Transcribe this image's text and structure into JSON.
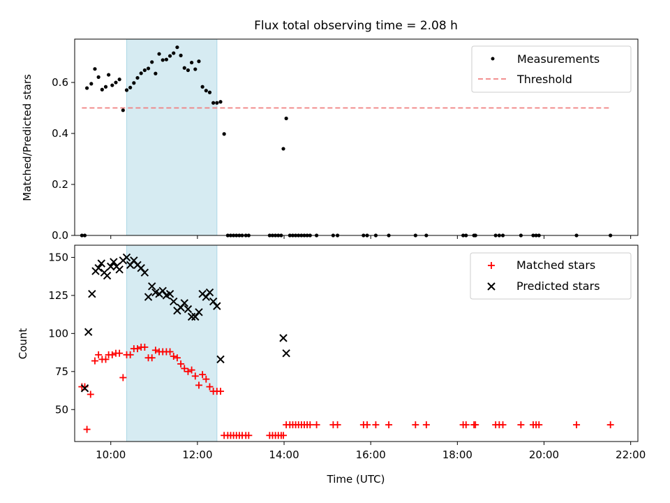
{
  "title": "Flux total observing time = 2.08 h",
  "colors": {
    "measurement": "#000000",
    "threshold": "#f08080",
    "matched": "#ff0000",
    "predicted": "#000000",
    "band": "#add8e6"
  },
  "chart_data": [
    {
      "type": "scatter",
      "ylabel": "Matched/Predicted stars",
      "ylim": [
        0,
        0.77
      ],
      "yticks": [
        0.0,
        0.2,
        0.4,
        0.6
      ],
      "yticklabels": [
        "0.0",
        "0.2",
        "0.4",
        "0.6"
      ],
      "xlim": [
        "09:10",
        "22:10"
      ],
      "shaded_interval": [
        "10:22",
        "12:27"
      ],
      "legend": [
        "Measurements",
        "Threshold"
      ],
      "legend_position": "upper right",
      "threshold": {
        "name": "Threshold",
        "value": 0.5,
        "x": [
          "09:20",
          "21:32"
        ]
      },
      "series": [
        {
          "name": "Measurements",
          "points": [
            [
              "09:20",
              0.0
            ],
            [
              "09:24",
              0.0
            ],
            [
              "09:27",
              0.578
            ],
            [
              "09:33",
              0.595
            ],
            [
              "09:38",
              0.653
            ],
            [
              "09:43",
              0.621
            ],
            [
              "09:48",
              0.572
            ],
            [
              "09:53",
              0.583
            ],
            [
              "09:57",
              0.63
            ],
            [
              "10:02",
              0.589
            ],
            [
              "10:07",
              0.6
            ],
            [
              "10:12",
              0.612
            ],
            [
              "10:17",
              0.491
            ],
            [
              "10:22",
              0.57
            ],
            [
              "10:27",
              0.58
            ],
            [
              "10:32",
              0.598
            ],
            [
              "10:37",
              0.618
            ],
            [
              "10:42",
              0.636
            ],
            [
              "10:47",
              0.648
            ],
            [
              "10:52",
              0.655
            ],
            [
              "10:57",
              0.68
            ],
            [
              "11:02",
              0.635
            ],
            [
              "11:07",
              0.712
            ],
            [
              "11:12",
              0.688
            ],
            [
              "11:17",
              0.69
            ],
            [
              "11:22",
              0.704
            ],
            [
              "11:27",
              0.715
            ],
            [
              "11:32",
              0.738
            ],
            [
              "11:37",
              0.706
            ],
            [
              "11:42",
              0.657
            ],
            [
              "11:47",
              0.648
            ],
            [
              "11:52",
              0.678
            ],
            [
              "11:57",
              0.652
            ],
            [
              "12:02",
              0.683
            ],
            [
              "12:07",
              0.583
            ],
            [
              "12:12",
              0.568
            ],
            [
              "12:17",
              0.561
            ],
            [
              "12:22",
              0.52
            ],
            [
              "12:27",
              0.52
            ],
            [
              "12:32",
              0.524
            ],
            [
              "12:37",
              0.398
            ],
            [
              "12:42",
              0.0
            ],
            [
              "12:46",
              0.0
            ],
            [
              "12:50",
              0.0
            ],
            [
              "12:54",
              0.0
            ],
            [
              "12:58",
              0.0
            ],
            [
              "13:02",
              0.0
            ],
            [
              "13:07",
              0.0
            ],
            [
              "13:11",
              0.0
            ],
            [
              "13:40",
              0.0
            ],
            [
              "13:44",
              0.0
            ],
            [
              "13:48",
              0.0
            ],
            [
              "13:52",
              0.0
            ],
            [
              "13:56",
              0.0
            ],
            [
              "13:59",
              0.34
            ],
            [
              "14:03",
              0.459
            ],
            [
              "14:08",
              0.0
            ],
            [
              "14:12",
              0.0
            ],
            [
              "14:16",
              0.0
            ],
            [
              "14:20",
              0.0
            ],
            [
              "14:24",
              0.0
            ],
            [
              "14:28",
              0.0
            ],
            [
              "14:32",
              0.0
            ],
            [
              "14:36",
              0.0
            ],
            [
              "14:45",
              0.0
            ],
            [
              "15:08",
              0.0
            ],
            [
              "15:14",
              0.0
            ],
            [
              "15:50",
              0.0
            ],
            [
              "15:55",
              0.0
            ],
            [
              "16:07",
              0.0
            ],
            [
              "16:25",
              0.0
            ],
            [
              "17:02",
              0.0
            ],
            [
              "17:17",
              0.0
            ],
            [
              "18:08",
              0.0
            ],
            [
              "18:12",
              0.0
            ],
            [
              "18:23",
              0.0
            ],
            [
              "18:25",
              0.0
            ],
            [
              "18:53",
              0.0
            ],
            [
              "18:58",
              0.0
            ],
            [
              "19:03",
              0.0
            ],
            [
              "19:28",
              0.0
            ],
            [
              "19:45",
              0.0
            ],
            [
              "19:49",
              0.0
            ],
            [
              "19:53",
              0.0
            ],
            [
              "20:45",
              0.0
            ],
            [
              "21:32",
              0.0
            ]
          ]
        }
      ]
    },
    {
      "type": "scatter",
      "title": "",
      "xlabel": "Time (UTC)",
      "ylabel": "Count",
      "ylim": [
        29,
        158
      ],
      "yticks": [
        50,
        75,
        100,
        125,
        150
      ],
      "yticklabels": [
        "50",
        "75",
        "100",
        "125",
        "150"
      ],
      "xlim": [
        "09:10",
        "22:10"
      ],
      "xticks": [
        "10:00",
        "12:00",
        "14:00",
        "16:00",
        "18:00",
        "20:00",
        "22:00"
      ],
      "xticklabels": [
        "10:00",
        "12:00",
        "14:00",
        "16:00",
        "18:00",
        "20:00",
        "22:00"
      ],
      "shaded_interval": [
        "10:22",
        "12:27"
      ],
      "legend": [
        "Matched stars",
        "Predicted stars"
      ],
      "legend_position": "upper right",
      "series": [
        {
          "name": "Matched stars",
          "points": [
            [
              "09:20",
              65
            ],
            [
              "09:24",
              65
            ],
            [
              "09:27",
              37
            ],
            [
              "09:32",
              60
            ],
            [
              "09:38",
              82
            ],
            [
              "09:43",
              86
            ],
            [
              "09:48",
              83
            ],
            [
              "09:53",
              83
            ],
            [
              "09:57",
              86
            ],
            [
              "10:02",
              86
            ],
            [
              "10:07",
              87
            ],
            [
              "10:12",
              87
            ],
            [
              "10:17",
              71
            ],
            [
              "10:22",
              86
            ],
            [
              "10:27",
              86
            ],
            [
              "10:32",
              90
            ],
            [
              "10:37",
              90
            ],
            [
              "10:42",
              91
            ],
            [
              "10:47",
              91
            ],
            [
              "10:52",
              84
            ],
            [
              "10:57",
              84
            ],
            [
              "11:02",
              89
            ],
            [
              "11:07",
              88
            ],
            [
              "11:12",
              88
            ],
            [
              "11:17",
              88
            ],
            [
              "11:22",
              88
            ],
            [
              "11:27",
              85
            ],
            [
              "11:32",
              84
            ],
            [
              "11:37",
              80
            ],
            [
              "11:42",
              77
            ],
            [
              "11:47",
              75
            ],
            [
              "11:52",
              76
            ],
            [
              "11:57",
              72
            ],
            [
              "12:02",
              66
            ],
            [
              "12:07",
              73
            ],
            [
              "12:12",
              70
            ],
            [
              "12:17",
              65
            ],
            [
              "12:22",
              62
            ],
            [
              "12:27",
              62
            ],
            [
              "12:32",
              62
            ],
            [
              "12:37",
              33
            ],
            [
              "12:42",
              33
            ],
            [
              "12:46",
              33
            ],
            [
              "12:50",
              33
            ],
            [
              "12:54",
              33
            ],
            [
              "12:58",
              33
            ],
            [
              "13:02",
              33
            ],
            [
              "13:07",
              33
            ],
            [
              "13:11",
              33
            ],
            [
              "13:40",
              33
            ],
            [
              "13:44",
              33
            ],
            [
              "13:48",
              33
            ],
            [
              "13:52",
              33
            ],
            [
              "13:56",
              33
            ],
            [
              "13:59",
              33
            ],
            [
              "14:03",
              40
            ],
            [
              "14:08",
              40
            ],
            [
              "14:12",
              40
            ],
            [
              "14:16",
              40
            ],
            [
              "14:20",
              40
            ],
            [
              "14:24",
              40
            ],
            [
              "14:28",
              40
            ],
            [
              "14:32",
              40
            ],
            [
              "14:36",
              40
            ],
            [
              "14:45",
              40
            ],
            [
              "15:08",
              40
            ],
            [
              "15:14",
              40
            ],
            [
              "15:50",
              40
            ],
            [
              "15:55",
              40
            ],
            [
              "16:07",
              40
            ],
            [
              "16:25",
              40
            ],
            [
              "17:02",
              40
            ],
            [
              "17:17",
              40
            ],
            [
              "18:08",
              40
            ],
            [
              "18:12",
              40
            ],
            [
              "18:23",
              40
            ],
            [
              "18:25",
              40
            ],
            [
              "18:53",
              40
            ],
            [
              "18:58",
              40
            ],
            [
              "19:03",
              40
            ],
            [
              "19:28",
              40
            ],
            [
              "19:45",
              40
            ],
            [
              "19:49",
              40
            ],
            [
              "19:53",
              40
            ],
            [
              "20:45",
              40
            ],
            [
              "21:32",
              40
            ]
          ]
        },
        {
          "name": "Predicted stars",
          "points": [
            [
              "09:24",
              64
            ],
            [
              "09:29",
              101
            ],
            [
              "09:34",
              126
            ],
            [
              "09:39",
              141
            ],
            [
              "09:43",
              143
            ],
            [
              "09:47",
              146
            ],
            [
              "09:51",
              140
            ],
            [
              "09:55",
              138
            ],
            [
              "10:00",
              144
            ],
            [
              "10:04",
              147
            ],
            [
              "10:08",
              144
            ],
            [
              "10:12",
              142
            ],
            [
              "10:17",
              148
            ],
            [
              "10:22",
              150
            ],
            [
              "10:27",
              145
            ],
            [
              "10:32",
              148
            ],
            [
              "10:37",
              145
            ],
            [
              "10:42",
              143
            ],
            [
              "10:47",
              140
            ],
            [
              "10:52",
              124
            ],
            [
              "10:57",
              131
            ],
            [
              "11:02",
              127
            ],
            [
              "11:07",
              126
            ],
            [
              "11:12",
              128
            ],
            [
              "11:17",
              125
            ],
            [
              "11:22",
              126
            ],
            [
              "11:27",
              121
            ],
            [
              "11:32",
              115
            ],
            [
              "11:37",
              117
            ],
            [
              "11:42",
              120
            ],
            [
              "11:47",
              116
            ],
            [
              "11:52",
              111
            ],
            [
              "11:57",
              111
            ],
            [
              "12:02",
              114
            ],
            [
              "12:07",
              126
            ],
            [
              "12:12",
              124
            ],
            [
              "12:17",
              127
            ],
            [
              "12:22",
              121
            ],
            [
              "12:27",
              118
            ],
            [
              "12:32",
              83
            ],
            [
              "13:59",
              97
            ],
            [
              "14:03",
              87
            ]
          ]
        }
      ]
    }
  ]
}
